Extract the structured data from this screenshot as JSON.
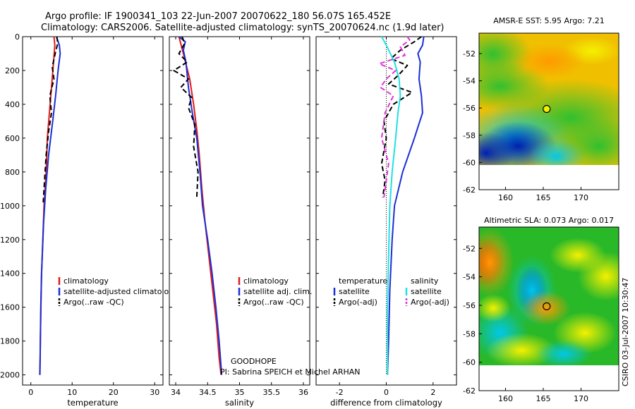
{
  "titles": {
    "line1": "Argo profile: IF 1900341_103 22-Jun-2007 20070622_180 56.07S 165.452E",
    "line2": "Climatology: CARS2006. Satellite-adjusted climatology: synTS_20070624.nc (1.9d later)"
  },
  "credit": "CSIRO 03-Jul-2007 10:30:47",
  "annotation": {
    "project": "GOODHOPE",
    "pi": "PI: Sabrina SPEICH et Michel ARHAN"
  },
  "colors": {
    "red": "#e01a1a",
    "blue": "#1a2fd6",
    "black": "#000000",
    "magenta": "#e033d6",
    "cyan": "#22e0e0"
  },
  "chart_data": [
    {
      "id": "temperature",
      "type": "line",
      "xlabel": "temperature",
      "xlim": [
        -2,
        32
      ],
      "xticks": [
        0,
        10,
        20,
        30
      ],
      "ylim": [
        0,
        2070
      ],
      "yticks": [
        0,
        200,
        400,
        600,
        800,
        1000,
        1200,
        1400,
        1600,
        1800,
        2000
      ],
      "y_inverted": true,
      "legend": [
        "climatology",
        "satellite-adjusted climatology",
        "Argo(..raw -QC)"
      ],
      "series": [
        {
          "name": "climatology",
          "color": "red",
          "style": "solid",
          "x": [
            5.6,
            5.8,
            5.5,
            5.0,
            4.5,
            4.0,
            3.7,
            3.2,
            2.9,
            2.6,
            2.45,
            2.3,
            2.25,
            2.15
          ],
          "y": [
            0,
            50,
            150,
            300,
            450,
            600,
            800,
            1000,
            1200,
            1400,
            1600,
            1800,
            1900,
            2000
          ]
        },
        {
          "name": "satellite-adjusted climatology",
          "color": "blue",
          "style": "solid",
          "x": [
            6.2,
            6.9,
            7.1,
            6.6,
            6.0,
            5.3,
            4.3,
            3.6,
            3.1,
            2.6,
            2.4,
            2.3,
            2.2
          ],
          "y": [
            0,
            50,
            100,
            200,
            350,
            500,
            700,
            900,
            1100,
            1400,
            1600,
            1800,
            2000
          ]
        },
        {
          "name": "Argo(..raw -QC)",
          "color": "black",
          "style": "dashed",
          "x": [
            6.3,
            6.5,
            5.9,
            5.2,
            5.6,
            4.6,
            5.0,
            4.3,
            3.7,
            3.4,
            3.2,
            3.0
          ],
          "y": [
            0,
            40,
            100,
            180,
            250,
            350,
            450,
            560,
            700,
            820,
            900,
            980
          ]
        }
      ]
    },
    {
      "id": "salinity",
      "type": "line",
      "xlabel": "salinity",
      "xlim": [
        33.9,
        36.1
      ],
      "xticks": [
        34,
        34.5,
        35,
        35.5,
        36
      ],
      "xtick_labels": [
        "34",
        "34.5",
        "35",
        "35.5",
        "36"
      ],
      "ylim": [
        0,
        2070
      ],
      "y_inverted": true,
      "legend": [
        "climatology",
        "satellite adj. clim.",
        "Argo(..raw -QC)"
      ],
      "series": [
        {
          "name": "climatology",
          "color": "red",
          "style": "solid",
          "x": [
            34.05,
            34.12,
            34.22,
            34.28,
            34.33,
            34.37,
            34.41,
            34.46,
            34.52,
            34.58,
            34.64,
            34.68,
            34.71
          ],
          "y": [
            0,
            100,
            250,
            400,
            550,
            700,
            900,
            1100,
            1300,
            1500,
            1700,
            1900,
            2000
          ]
        },
        {
          "name": "satellite adj. clim.",
          "color": "blue",
          "style": "solid",
          "x": [
            34.05,
            34.15,
            34.12,
            34.16,
            34.2,
            34.26,
            34.33,
            34.38,
            34.42,
            34.5,
            34.57,
            34.63,
            34.68,
            34.72
          ],
          "y": [
            0,
            30,
            80,
            150,
            300,
            450,
            600,
            800,
            1000,
            1200,
            1400,
            1600,
            1800,
            2000
          ]
        },
        {
          "name": "Argo(..raw -QC)",
          "color": "black",
          "style": "dashed",
          "x": [
            34.1,
            34.14,
            34.05,
            34.18,
            33.97,
            34.2,
            34.08,
            34.25,
            34.2,
            34.3,
            34.28,
            34.35,
            34.33
          ],
          "y": [
            0,
            40,
            100,
            150,
            200,
            250,
            300,
            360,
            420,
            520,
            650,
            800,
            950
          ]
        }
      ]
    },
    {
      "id": "difference",
      "type": "line",
      "xlabel": "difference from climatology",
      "xlim": [
        -3,
        3
      ],
      "xticks": [
        -2,
        0,
        2
      ],
      "ylim": [
        0,
        2070
      ],
      "y_inverted": true,
      "legend": [
        "temperature",
        "satellite",
        "Argo(-adj)",
        "salinity",
        "satellite",
        "Argo(-adj)"
      ],
      "series": [
        {
          "name": "satellite",
          "color": "blue",
          "style": "solid",
          "x": [
            1.6,
            1.55,
            1.35,
            1.45,
            1.4,
            1.5,
            1.55,
            1.2,
            0.7,
            0.35,
            0.25,
            0.15,
            0.1,
            0.05
          ],
          "y": [
            0,
            50,
            100,
            150,
            250,
            350,
            450,
            600,
            800,
            1000,
            1200,
            1500,
            1800,
            2000
          ]
        },
        {
          "name": "Argo(-adj)",
          "color": "black",
          "style": "dashed",
          "x": [
            1.5,
            1.2,
            0.6,
            0.2,
            0.9,
            0.5,
            0.1,
            1.1,
            0.3,
            -0.1,
            0.0,
            -0.2,
            -0.05,
            -0.15
          ],
          "y": [
            0,
            30,
            80,
            130,
            170,
            230,
            280,
            330,
            400,
            500,
            600,
            750,
            850,
            950
          ]
        },
        {
          "name": "satellite",
          "color": "cyan",
          "style": "solid",
          "x": [
            -0.2,
            0.0,
            0.35,
            0.55,
            0.6,
            0.5,
            0.4,
            0.25,
            0.15,
            0.1,
            0.05,
            0.05
          ],
          "y": [
            0,
            50,
            150,
            250,
            350,
            450,
            600,
            800,
            1000,
            1300,
            1600,
            2000
          ]
        },
        {
          "name": "Argo(-adj)",
          "color": "magenta",
          "style": "dashed",
          "x": [
            0.9,
            1.0,
            0.6,
            0.8,
            -0.3,
            0.4,
            0.0,
            -0.25,
            0.3,
            -0.05,
            -0.2,
            0.1,
            -0.1
          ],
          "y": [
            0,
            20,
            60,
            110,
            160,
            200,
            250,
            300,
            350,
            450,
            600,
            750,
            950
          ]
        }
      ]
    },
    {
      "id": "sst_map",
      "type": "heatmap",
      "title": "AMSR-E SST: 5.95 Argo: 7.21",
      "xlim": [
        156.5,
        175
      ],
      "ylim": [
        -62,
        -50.5
      ],
      "xticks": [
        160,
        165,
        170
      ],
      "yticks": [
        -52,
        -54,
        -56,
        -58,
        -60,
        -62
      ],
      "marker": [
        165.45,
        -56.07
      ]
    },
    {
      "id": "sla_map",
      "type": "heatmap",
      "title": "Altimetric SLA: 0.073 Argo: 0.017",
      "xlim": [
        156.5,
        175
      ],
      "ylim": [
        -62,
        -50.5
      ],
      "xticks": [
        160,
        165,
        170
      ],
      "yticks": [
        -52,
        -54,
        -56,
        -58,
        -60,
        -62
      ],
      "marker": [
        165.45,
        -56.07
      ]
    }
  ]
}
